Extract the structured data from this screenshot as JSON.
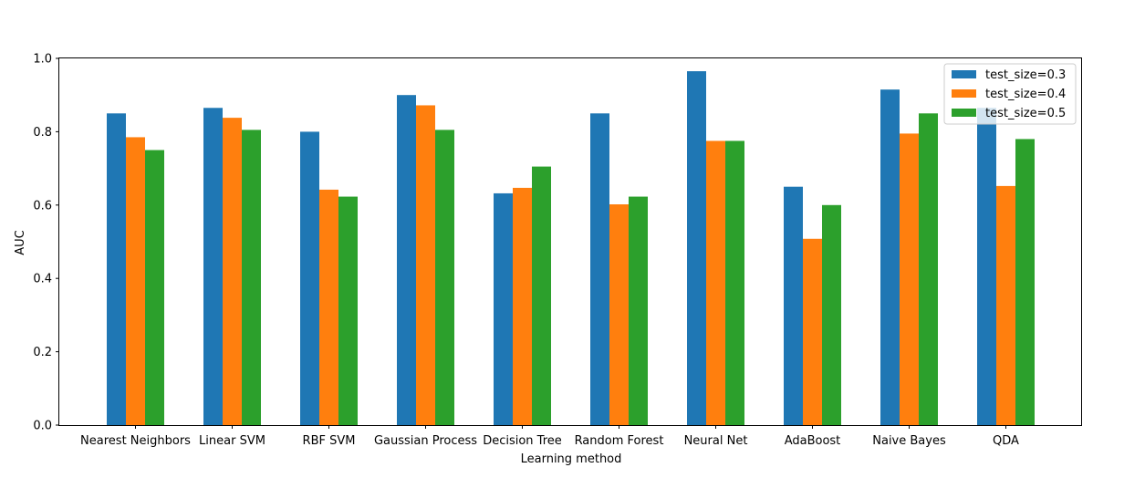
{
  "chart_data": {
    "type": "bar",
    "title": "",
    "xlabel": "Learning method",
    "ylabel": "AUC",
    "ylim": [
      0,
      1.0
    ],
    "yticks": [
      "0.0",
      "0.2",
      "0.4",
      "0.6",
      "0.8",
      "1.0"
    ],
    "grid": false,
    "legend_position": "top-right",
    "categories": [
      "Nearest Neighbors",
      "Linear SVM",
      "RBF SVM",
      "Gaussian Process",
      "Decision Tree",
      "Random Forest",
      "Neural Net",
      "AdaBoost",
      "Naive Bayes",
      "QDA"
    ],
    "series": [
      {
        "name": "test_size=0.3",
        "color": "#1f77b4",
        "values": [
          0.85,
          0.865,
          0.8,
          0.9,
          0.632,
          0.85,
          0.965,
          0.65,
          0.915,
          0.865
        ]
      },
      {
        "name": "test_size=0.4",
        "color": "#ff7f0e",
        "values": [
          0.785,
          0.838,
          0.642,
          0.872,
          0.647,
          0.602,
          0.775,
          0.508,
          0.795,
          0.652
        ]
      },
      {
        "name": "test_size=0.5",
        "color": "#2ca02c",
        "values": [
          0.75,
          0.805,
          0.623,
          0.805,
          0.705,
          0.623,
          0.775,
          0.6,
          0.85,
          0.78
        ]
      }
    ]
  }
}
